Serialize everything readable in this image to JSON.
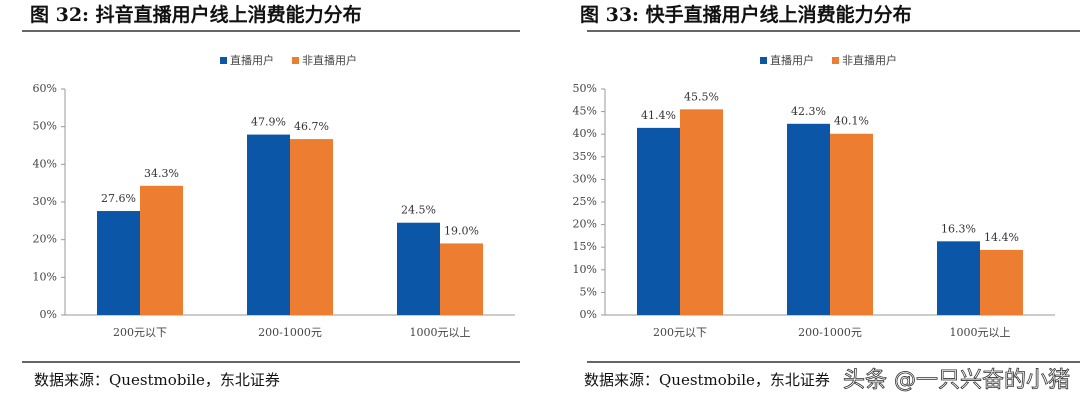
{
  "chart_data": [
    {
      "type": "bar",
      "title": "图 32: 抖音直播用户线上消费能力分布",
      "categories": [
        "200元以下",
        "200-1000元",
        "1000元以上"
      ],
      "series": [
        {
          "name": "直播用户",
          "color": "#0b56a6",
          "values": [
            27.6,
            47.9,
            24.5
          ],
          "value_labels": [
            "27.6%",
            "47.9%",
            "24.5%"
          ]
        },
        {
          "name": "非直播用户",
          "color": "#ed7d31",
          "values": [
            34.3,
            46.7,
            19.0
          ],
          "value_labels": [
            "34.3%",
            "46.7%",
            "19.0%"
          ]
        }
      ],
      "ylim": [
        0,
        60
      ],
      "yticks": [
        {
          "value": 0,
          "label": "0%"
        },
        {
          "value": 10,
          "label": "10%"
        },
        {
          "value": 20,
          "label": "20%"
        },
        {
          "value": 30,
          "label": "30%"
        },
        {
          "value": 40,
          "label": "40%"
        },
        {
          "value": 50,
          "label": "50%"
        },
        {
          "value": 60,
          "label": "60%"
        }
      ],
      "legend": "top",
      "source": "数据来源：Questmobile，东北证券"
    },
    {
      "type": "bar",
      "title": "图 33: 快手直播用户线上消费能力分布",
      "categories": [
        "200元以下",
        "200-1000元",
        "1000元以上"
      ],
      "series": [
        {
          "name": "直播用户",
          "color": "#0b56a6",
          "values": [
            41.4,
            42.3,
            16.3
          ],
          "value_labels": [
            "41.4%",
            "42.3%",
            "16.3%"
          ]
        },
        {
          "name": "非直播用户",
          "color": "#ed7d31",
          "values": [
            45.5,
            40.1,
            14.4
          ],
          "value_labels": [
            "45.5%",
            "40.1%",
            "14.4%"
          ]
        }
      ],
      "ylim": [
        0,
        50
      ],
      "yticks": [
        {
          "value": 0,
          "label": "0%"
        },
        {
          "value": 5,
          "label": "5%"
        },
        {
          "value": 10,
          "label": "10%"
        },
        {
          "value": 15,
          "label": "15%"
        },
        {
          "value": 20,
          "label": "20%"
        },
        {
          "value": 25,
          "label": "25%"
        },
        {
          "value": 30,
          "label": "30%"
        },
        {
          "value": 35,
          "label": "35%"
        },
        {
          "value": 40,
          "label": "40%"
        },
        {
          "value": 45,
          "label": "45%"
        },
        {
          "value": 50,
          "label": "50%"
        }
      ],
      "legend": "top",
      "source": "数据来源：Questmobile，东北证券"
    }
  ],
  "watermark": "头条 @一只兴奋的小猪"
}
